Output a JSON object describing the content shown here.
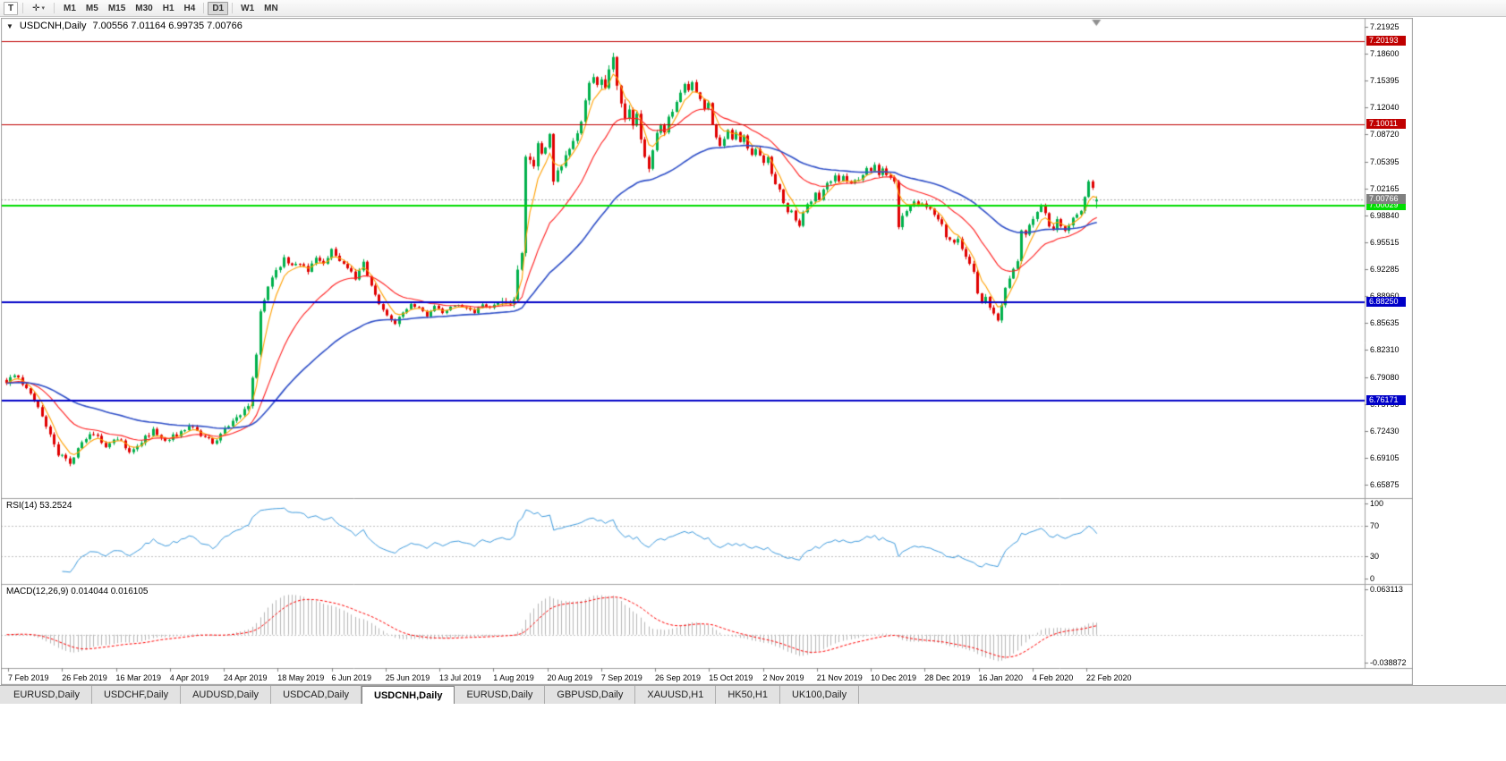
{
  "toolbar": {
    "text_tool": "T",
    "cursor_tool": "✛",
    "dropdown_arrow": "▾",
    "timeframes": [
      "M1",
      "M5",
      "M15",
      "M30",
      "H1",
      "H4",
      "D1",
      "W1",
      "MN"
    ],
    "active_timeframe": "D1"
  },
  "chart": {
    "collapse_arrow": "▼",
    "symbol_period": "USDCNH,Daily",
    "ohlc_text": "7.00556 7.01164 6.99735 7.00766"
  },
  "price_axis_labels": [
    "7.21925",
    "7.18600",
    "7.15395",
    "7.12040",
    "7.08720",
    "7.05395",
    "7.02165",
    "6.98840",
    "6.95515",
    "6.92285",
    "6.88960",
    "6.85635",
    "6.82310",
    "6.79080",
    "6.75755",
    "6.72430",
    "6.69105",
    "6.65875"
  ],
  "current_price": {
    "value": 7.00766,
    "label": "7.00766",
    "box_color": "#808080",
    "line_color": "#a8a8a8"
  },
  "horizontal_lines": [
    {
      "price": 7.20193,
      "label": "7.20193",
      "color": "#c00000",
      "width": 1
    },
    {
      "price": 7.10011,
      "label": "7.10011",
      "color": "#c00000",
      "width": 1
    },
    {
      "price": 7.00029,
      "label": "7.00029",
      "color": "#00dd00",
      "width": 2
    },
    {
      "price": 6.8825,
      "label": "6.88250",
      "color": "#0000c8",
      "width": 2
    },
    {
      "price": 6.76171,
      "label": "6.76171",
      "color": "#0000c8",
      "width": 2
    }
  ],
  "time_axis_labels": [
    "7 Feb 2019",
    "26 Feb 2019",
    "16 Mar 2019",
    "4 Apr 2019",
    "24 Apr 2019",
    "18 May 2019",
    "6 Jun 2019",
    "25 Jun 2019",
    "13 Jul 2019",
    "1 Aug 2019",
    "20 Aug 2019",
    "7 Sep 2019",
    "26 Sep 2019",
    "15 Oct 2019",
    "2 Nov 2019",
    "21 Nov 2019",
    "10 Dec 2019",
    "28 Dec 2019",
    "16 Jan 2020",
    "4 Feb 2020",
    "22 Feb 2020"
  ],
  "rsi_panel": {
    "label": "RSI(14) 53.2524",
    "scale_labels": [
      "100",
      "70",
      "30",
      "0"
    ],
    "level_lines": [
      70,
      30
    ],
    "line_color": "#3e9bde"
  },
  "macd_panel": {
    "label": "MACD(12,26,9) 0.014044 0.016105",
    "scale_top_label": "0.063113",
    "scale_bottom_label": "-0.038872",
    "scale_range": [
      -0.038872,
      0.063113
    ],
    "histogram_color": "#b6b6b6",
    "signal_color": "#ff0000"
  },
  "bottom_tabs": [
    "EURUSD,Daily",
    "USDCHF,Daily",
    "AUDUSD,Daily",
    "USDCAD,Daily",
    "USDCNH,Daily",
    "EURUSD,Daily",
    "GBPUSD,Daily",
    "XAUUSD,H1",
    "HK50,H1",
    "UK100,Daily"
  ],
  "active_tab_index": 4,
  "chart_data": {
    "type": "candlestick",
    "symbol": "USDCNH",
    "period": "Daily",
    "visible_price_range": [
      6.65875,
      7.21925
    ],
    "bar_count": 276,
    "last_bar": {
      "open": 7.00556,
      "high": 7.01164,
      "low": 6.99735,
      "close": 7.00766
    },
    "bull_color": "#00b14c",
    "bear_color": "#e00000",
    "moving_averages": [
      {
        "period": 5,
        "method": "ema",
        "color": "#ffa000"
      },
      {
        "period": 20,
        "method": "ema",
        "color": "#ff2020"
      },
      {
        "period": 55,
        "method": "ema",
        "color": "#3050c8"
      }
    ],
    "indicators": {
      "rsi": {
        "period": 14,
        "current": 53.2524
      },
      "macd": {
        "fast": 12,
        "slow": 26,
        "signal": 9,
        "current_macd": 0.014044,
        "current_signal": 0.016105
      }
    },
    "close_anchors": [
      [
        0,
        6.785
      ],
      [
        2,
        6.793
      ],
      [
        5,
        6.778
      ],
      [
        8,
        6.755
      ],
      [
        11,
        6.72
      ],
      [
        13,
        6.697
      ],
      [
        16,
        6.686
      ],
      [
        19,
        6.71
      ],
      [
        22,
        6.722
      ],
      [
        25,
        6.705
      ],
      [
        28,
        6.716
      ],
      [
        31,
        6.7
      ],
      [
        34,
        6.712
      ],
      [
        37,
        6.725
      ],
      [
        40,
        6.714
      ],
      [
        43,
        6.72
      ],
      [
        46,
        6.731
      ],
      [
        49,
        6.72
      ],
      [
        52,
        6.71
      ],
      [
        55,
        6.726
      ],
      [
        57,
        6.736
      ],
      [
        59,
        6.742
      ],
      [
        61,
        6.757
      ],
      [
        63,
        6.82
      ],
      [
        64,
        6.87
      ],
      [
        66,
        6.9
      ],
      [
        68,
        6.92
      ],
      [
        70,
        6.935
      ],
      [
        72,
        6.925
      ],
      [
        74,
        6.93
      ],
      [
        76,
        6.92
      ],
      [
        78,
        6.935
      ],
      [
        80,
        6.93
      ],
      [
        82,
        6.945
      ],
      [
        84,
        6.93
      ],
      [
        86,
        6.925
      ],
      [
        88,
        6.912
      ],
      [
        90,
        6.93
      ],
      [
        92,
        6.9
      ],
      [
        94,
        6.882
      ],
      [
        96,
        6.868
      ],
      [
        98,
        6.856
      ],
      [
        100,
        6.87
      ],
      [
        102,
        6.88
      ],
      [
        104,
        6.875
      ],
      [
        106,
        6.866
      ],
      [
        108,
        6.878
      ],
      [
        110,
        6.87
      ],
      [
        112,
        6.876
      ],
      [
        114,
        6.88
      ],
      [
        116,
        6.874
      ],
      [
        118,
        6.87
      ],
      [
        120,
        6.88
      ],
      [
        122,
        6.876
      ],
      [
        124,
        6.882
      ],
      [
        126,
        6.878
      ],
      [
        128,
        6.888
      ],
      [
        129,
        6.92
      ],
      [
        130,
        6.941
      ],
      [
        131,
        7.06
      ],
      [
        132,
        7.058
      ],
      [
        133,
        7.048
      ],
      [
        134,
        7.078
      ],
      [
        135,
        7.062
      ],
      [
        136,
        7.07
      ],
      [
        137,
        7.088
      ],
      [
        138,
        7.03
      ],
      [
        139,
        7.042
      ],
      [
        140,
        7.052
      ],
      [
        141,
        7.06
      ],
      [
        142,
        7.07
      ],
      [
        143,
        7.078
      ],
      [
        144,
        7.088
      ],
      [
        145,
        7.1
      ],
      [
        146,
        7.13
      ],
      [
        147,
        7.152
      ],
      [
        148,
        7.16
      ],
      [
        149,
        7.15
      ],
      [
        150,
        7.158
      ],
      [
        151,
        7.145
      ],
      [
        152,
        7.17
      ],
      [
        153,
        7.182
      ],
      [
        154,
        7.15
      ],
      [
        155,
        7.122
      ],
      [
        156,
        7.11
      ],
      [
        157,
        7.12
      ],
      [
        158,
        7.1
      ],
      [
        159,
        7.11
      ],
      [
        160,
        7.082
      ],
      [
        161,
        7.06
      ],
      [
        162,
        7.046
      ],
      [
        163,
        7.07
      ],
      [
        164,
        7.09
      ],
      [
        165,
        7.1
      ],
      [
        166,
        7.09
      ],
      [
        167,
        7.108
      ],
      [
        168,
        7.118
      ],
      [
        169,
        7.128
      ],
      [
        170,
        7.138
      ],
      [
        171,
        7.15
      ],
      [
        172,
        7.144
      ],
      [
        173,
        7.15
      ],
      [
        174,
        7.14
      ],
      [
        175,
        7.13
      ],
      [
        176,
        7.12
      ],
      [
        177,
        7.128
      ],
      [
        178,
        7.1
      ],
      [
        179,
        7.082
      ],
      [
        180,
        7.072
      ],
      [
        181,
        7.08
      ],
      [
        182,
        7.094
      ],
      [
        183,
        7.08
      ],
      [
        184,
        7.09
      ],
      [
        185,
        7.08
      ],
      [
        186,
        7.086
      ],
      [
        187,
        7.072
      ],
      [
        188,
        7.064
      ],
      [
        189,
        7.07
      ],
      [
        190,
        7.06
      ],
      [
        191,
        7.054
      ],
      [
        192,
        7.06
      ],
      [
        193,
        7.04
      ],
      [
        194,
        7.028
      ],
      [
        195,
        7.02
      ],
      [
        196,
        7.002
      ],
      [
        197,
        6.99
      ],
      [
        198,
        6.995
      ],
      [
        199,
        6.982
      ],
      [
        200,
        6.974
      ],
      [
        201,
        6.99
      ],
      [
        202,
        7.0
      ],
      [
        203,
        7.006
      ],
      [
        204,
        7.014
      ],
      [
        205,
        7.01
      ],
      [
        206,
        7.02
      ],
      [
        207,
        7.026
      ],
      [
        208,
        7.032
      ],
      [
        209,
        7.036
      ],
      [
        210,
        7.03
      ],
      [
        211,
        7.036
      ],
      [
        212,
        7.03
      ],
      [
        213,
        7.026
      ],
      [
        214,
        7.03
      ],
      [
        215,
        7.034
      ],
      [
        216,
        7.04
      ],
      [
        217,
        7.048
      ],
      [
        218,
        7.042
      ],
      [
        219,
        7.048
      ],
      [
        220,
        7.04
      ],
      [
        221,
        7.044
      ],
      [
        222,
        7.04
      ],
      [
        223,
        7.034
      ],
      [
        224,
        7.028
      ],
      [
        225,
        6.976
      ],
      [
        226,
        6.986
      ],
      [
        227,
        6.992
      ],
      [
        228,
        7.0
      ],
      [
        229,
        7.004
      ],
      [
        230,
        7.0
      ],
      [
        231,
        7.004
      ],
      [
        232,
        7.0
      ],
      [
        233,
        6.996
      ],
      [
        234,
        6.99
      ],
      [
        235,
        6.984
      ],
      [
        236,
        6.976
      ],
      [
        237,
        6.964
      ],
      [
        238,
        6.96
      ],
      [
        239,
        6.956
      ],
      [
        240,
        6.962
      ],
      [
        241,
        6.946
      ],
      [
        242,
        6.94
      ],
      [
        243,
        6.928
      ],
      [
        244,
        6.918
      ],
      [
        245,
        6.895
      ],
      [
        246,
        6.882
      ],
      [
        247,
        6.888
      ],
      [
        248,
        6.876
      ],
      [
        249,
        6.868
      ],
      [
        250,
        6.858
      ],
      [
        251,
        6.876
      ],
      [
        252,
        6.902
      ],
      [
        253,
        6.912
      ],
      [
        254,
        6.922
      ],
      [
        255,
        6.932
      ],
      [
        256,
        6.972
      ],
      [
        257,
        6.966
      ],
      [
        258,
        6.976
      ],
      [
        259,
        6.986
      ],
      [
        260,
        6.995
      ],
      [
        261,
        7.0
      ],
      [
        262,
        6.99
      ],
      [
        263,
        6.975
      ],
      [
        264,
        6.97
      ],
      [
        265,
        6.982
      ],
      [
        266,
        6.974
      ],
      [
        267,
        6.968
      ],
      [
        268,
        6.976
      ],
      [
        269,
        6.984
      ],
      [
        270,
        6.988
      ],
      [
        271,
        6.996
      ],
      [
        272,
        7.012
      ],
      [
        273,
        7.03
      ],
      [
        274,
        7.024
      ],
      [
        275,
        7.00766
      ]
    ]
  }
}
